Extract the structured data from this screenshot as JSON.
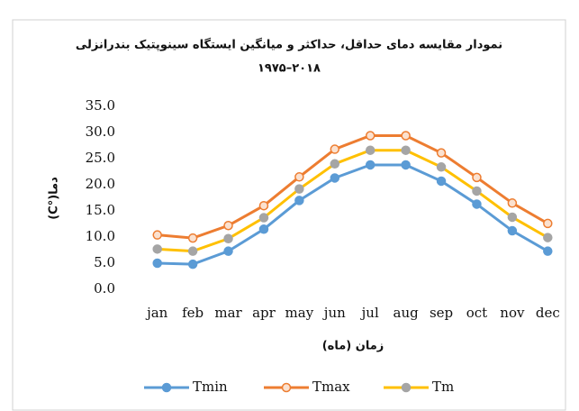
{
  "chart_data": {
    "type": "line",
    "title": "نمودار مقایسه دمای حداقل، حداکثر و میانگین ایستگاه سینوپتیک بندرانزلی",
    "subtitle": "۱۹۷۵–۲۰۱۸",
    "y_label": "دما(°C)",
    "x_label": "زمان (ماه)",
    "categories": [
      "jan",
      "feb",
      "mar",
      "apr",
      "may",
      "jun",
      "jul",
      "aug",
      "sep",
      "oct",
      "nov",
      "dec"
    ],
    "series": [
      {
        "name": "Tmin",
        "color": "#5b9bd5",
        "marker_color": "#5b9bd5",
        "values": [
          5.0,
          4.8,
          7.3,
          11.5,
          17.0,
          21.3,
          23.8,
          23.8,
          20.7,
          16.3,
          11.2,
          7.3
        ]
      },
      {
        "name": "Tmax",
        "color": "#ed7d31",
        "marker_color": "#ed7d31",
        "values": [
          10.4,
          9.8,
          12.2,
          16.0,
          21.5,
          26.8,
          29.4,
          29.4,
          26.1,
          21.4,
          16.5,
          12.6
        ]
      },
      {
        "name": "Tm",
        "color": "#ffc000",
        "marker_color": "#a5a5a5",
        "values": [
          7.7,
          7.3,
          9.7,
          13.7,
          19.2,
          24.0,
          26.6,
          26.6,
          23.4,
          18.8,
          13.8,
          9.9
        ]
      }
    ],
    "ylim": [
      0,
      35
    ],
    "yticks": [
      {
        "value": 0,
        "label": "0.0"
      },
      {
        "value": 5,
        "label": "5.0"
      },
      {
        "value": 10,
        "label": "10.0"
      },
      {
        "value": 15,
        "label": "15.0"
      },
      {
        "value": 20,
        "label": "20.0"
      },
      {
        "value": 25,
        "label": "25.0"
      },
      {
        "value": 30,
        "label": "30.0"
      },
      {
        "value": 35,
        "label": "35.0"
      }
    ],
    "legend": "bottom"
  }
}
